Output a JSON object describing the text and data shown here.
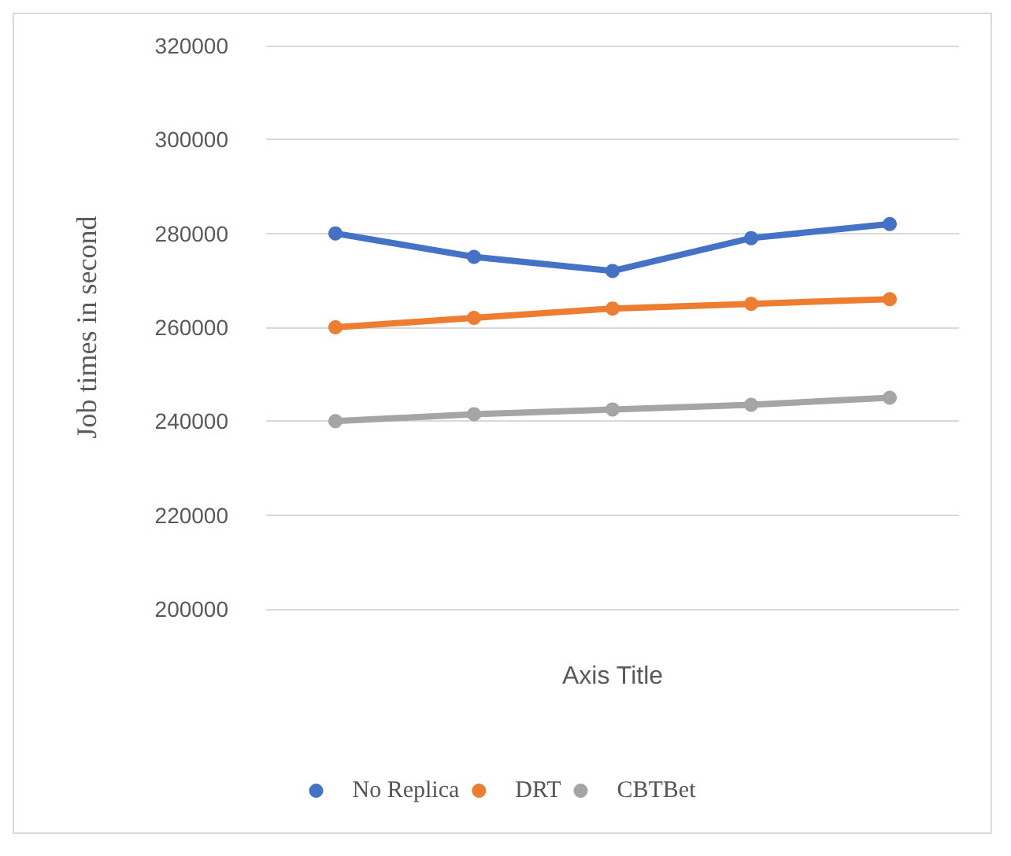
{
  "chart_data": {
    "type": "line",
    "xlabel": "Axis Title",
    "ylabel": "Job times in second",
    "categories": [
      null,
      null,
      null,
      null,
      null
    ],
    "series": [
      {
        "name": "No Replica",
        "color": "#4472c4",
        "values": [
          280000,
          275000,
          272000,
          279000,
          282000
        ]
      },
      {
        "name": "DRT",
        "color": "#ed7d31",
        "values": [
          260000,
          262000,
          264000,
          265000,
          266000
        ]
      },
      {
        "name": "CBTBet",
        "color": "#a5a5a5",
        "values": [
          240000,
          241500,
          242500,
          243500,
          245000
        ]
      }
    ],
    "ylim": [
      200000,
      320000
    ],
    "yticks": [
      200000,
      220000,
      240000,
      260000,
      280000,
      300000,
      320000
    ],
    "grid": "y",
    "legend": "bottom",
    "marker": "circle",
    "line_style": "solid"
  }
}
